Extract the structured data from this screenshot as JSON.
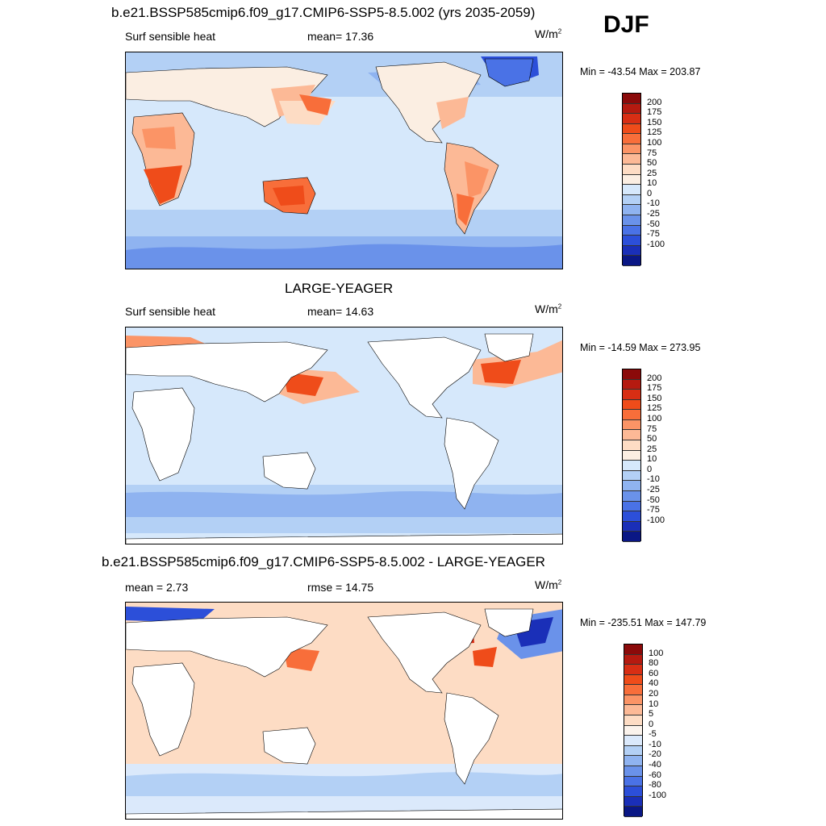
{
  "season": "DJF",
  "panels": [
    {
      "id": "model",
      "title": "b.e21.BSSP585cmip6.f09_g17.CMIP6-SSP5-8.5.002 (yrs 2035-2059)",
      "left_label": "Surf sensible heat",
      "center_label": "mean=  17.36",
      "units": "W/m",
      "units_sup": "2",
      "minmax": "Min = -43.54 Max = 203.87",
      "levels": [
        "200",
        "175",
        "150",
        "125",
        "100",
        "75",
        "50",
        "25",
        "10",
        "0",
        "-10",
        "-25",
        "-50",
        "-75",
        "-100"
      ],
      "colors": [
        "#8b0a0a",
        "#b51a10",
        "#d82e14",
        "#ef4c1a",
        "#f86e3a",
        "#fb9466",
        "#fcb996",
        "#fddcc4",
        "#fbeee2",
        "#d6e8fb",
        "#b3d0f5",
        "#8fb3f0",
        "#6a92ea",
        "#4a72e6",
        "#2c4fd9",
        "#1a2fb8",
        "#0a1785"
      ]
    },
    {
      "id": "obs",
      "title": "LARGE-YEAGER",
      "left_label": "Surf sensible heat",
      "center_label": "mean=  14.63",
      "units": "W/m",
      "units_sup": "2",
      "minmax": "Min = -14.59 Max = 273.95",
      "levels": [
        "200",
        "175",
        "150",
        "125",
        "100",
        "75",
        "50",
        "25",
        "10",
        "0",
        "-10",
        "-25",
        "-50",
        "-75",
        "-100"
      ],
      "colors": [
        "#8b0a0a",
        "#b51a10",
        "#d82e14",
        "#ef4c1a",
        "#f86e3a",
        "#fb9466",
        "#fcb996",
        "#fddcc4",
        "#fbeee2",
        "#d6e8fb",
        "#b3d0f5",
        "#8fb3f0",
        "#6a92ea",
        "#4a72e6",
        "#2c4fd9",
        "#1a2fb8",
        "#0a1785"
      ]
    },
    {
      "id": "diff",
      "title": "b.e21.BSSP585cmip6.f09_g17.CMIP6-SSP5-8.5.002 - LARGE-YEAGER",
      "left_label": "mean =   2.73",
      "center_label": "rmse =  14.75",
      "units": "W/m",
      "units_sup": "2",
      "minmax": "Min = -235.51 Max = 147.79",
      "levels": [
        "100",
        "80",
        "60",
        "40",
        "20",
        "10",
        "5",
        "0",
        "-5",
        "-10",
        "-20",
        "-40",
        "-60",
        "-80",
        "-100"
      ],
      "colors": [
        "#8b0a0a",
        "#b51a10",
        "#d82e14",
        "#ef4c1a",
        "#f86e3a",
        "#fb9466",
        "#fcb996",
        "#fddcc4",
        "#fbf3ec",
        "#dbe9fb",
        "#b3d0f5",
        "#8fb3f0",
        "#6a92ea",
        "#4a72e6",
        "#2c4fd9",
        "#1a2fb8",
        "#0a1785"
      ]
    }
  ]
}
